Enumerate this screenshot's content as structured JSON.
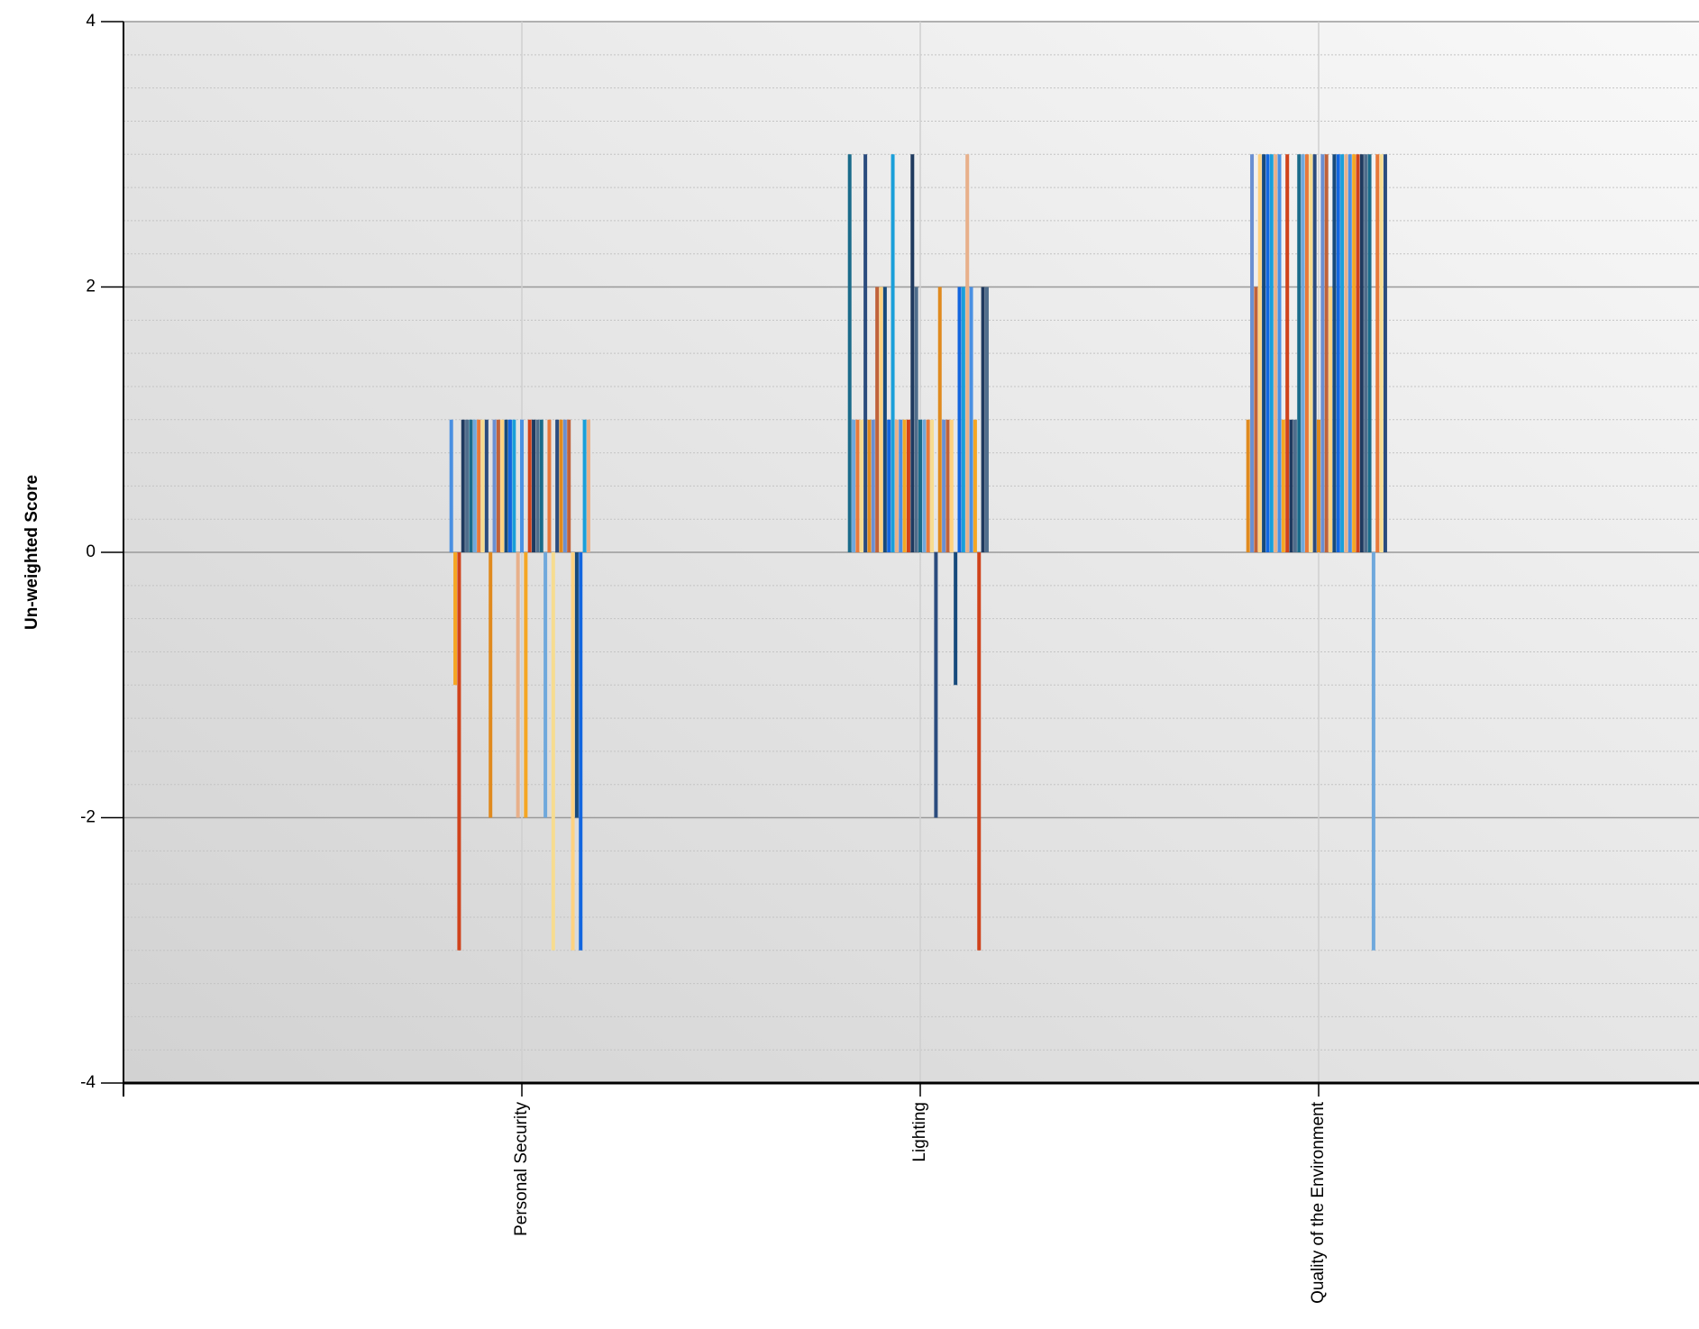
{
  "chart_data": {
    "type": "bar",
    "ylabel": "Un-weighted Score",
    "ylim": [
      -4,
      4
    ],
    "yticks": [
      4,
      2,
      0,
      -2,
      -4
    ],
    "grid": true,
    "categories": [
      "Personal Security",
      "Lighting",
      "Quality of the Environment"
    ],
    "values": [
      [
        1,
        -1,
        -3,
        1,
        1,
        1,
        1,
        1,
        1,
        1,
        -2,
        1,
        1,
        1,
        1,
        1,
        1,
        -2,
        1,
        -2,
        1,
        1,
        1,
        1,
        -2,
        1,
        -3,
        1,
        1,
        1,
        1,
        -3,
        -2,
        -3,
        1,
        1
      ],
      [
        3,
        1,
        1,
        1,
        3,
        1,
        1,
        2,
        2,
        2,
        1,
        3,
        1,
        1,
        1,
        1,
        3,
        2,
        1,
        1,
        1,
        1,
        -2,
        2,
        1,
        1,
        1,
        -1,
        2,
        2,
        3,
        2,
        1,
        -3,
        2,
        2
      ],
      [
        1,
        3,
        2,
        3,
        3,
        3,
        3,
        3,
        3,
        1,
        3,
        1,
        1,
        3,
        3,
        3,
        3,
        3,
        1,
        3,
        3,
        2,
        3,
        3,
        3,
        3,
        3,
        3,
        3,
        3,
        3,
        3,
        -3,
        3,
        3,
        3
      ]
    ],
    "colors": [
      "#4a90e2",
      "#f5a623",
      "#d0421b",
      "#1f3a5f",
      "#4f6d8c",
      "#1a6b8a",
      "#6fa8dc",
      "#e8793a",
      "#f7dc8f",
      "#2b4c7e",
      "#e08a1e",
      "#6a8fd1",
      "#c0623a",
      "#ffd27f",
      "#174a7c",
      "#1266e0",
      "#1a9fd9",
      "#e8b08a"
    ]
  }
}
